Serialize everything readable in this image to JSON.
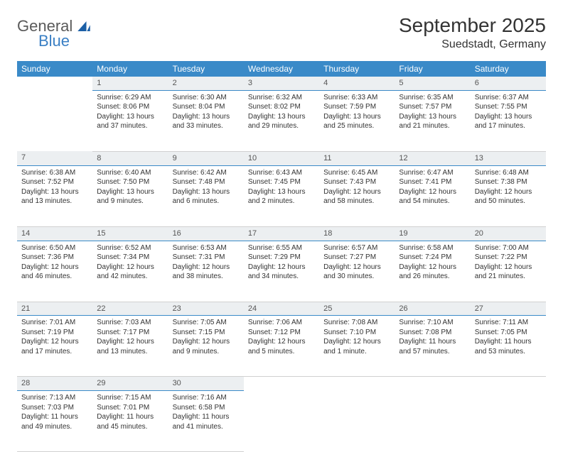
{
  "brand": {
    "general": "General",
    "blue": "Blue"
  },
  "title": "September 2025",
  "location": "Suedstadt, Germany",
  "header_bg": "#3a8ac8",
  "daynum_bg": "#eceff1",
  "daynum_border": "#3a8ac8",
  "weekdays": [
    "Sunday",
    "Monday",
    "Tuesday",
    "Wednesday",
    "Thursday",
    "Friday",
    "Saturday"
  ],
  "weeks": [
    [
      {
        "n": "",
        "lines": [
          "",
          "",
          "",
          ""
        ]
      },
      {
        "n": "1",
        "lines": [
          "Sunrise: 6:29 AM",
          "Sunset: 8:06 PM",
          "Daylight: 13 hours",
          "and 37 minutes."
        ]
      },
      {
        "n": "2",
        "lines": [
          "Sunrise: 6:30 AM",
          "Sunset: 8:04 PM",
          "Daylight: 13 hours",
          "and 33 minutes."
        ]
      },
      {
        "n": "3",
        "lines": [
          "Sunrise: 6:32 AM",
          "Sunset: 8:02 PM",
          "Daylight: 13 hours",
          "and 29 minutes."
        ]
      },
      {
        "n": "4",
        "lines": [
          "Sunrise: 6:33 AM",
          "Sunset: 7:59 PM",
          "Daylight: 13 hours",
          "and 25 minutes."
        ]
      },
      {
        "n": "5",
        "lines": [
          "Sunrise: 6:35 AM",
          "Sunset: 7:57 PM",
          "Daylight: 13 hours",
          "and 21 minutes."
        ]
      },
      {
        "n": "6",
        "lines": [
          "Sunrise: 6:37 AM",
          "Sunset: 7:55 PM",
          "Daylight: 13 hours",
          "and 17 minutes."
        ]
      }
    ],
    [
      {
        "n": "7",
        "lines": [
          "Sunrise: 6:38 AM",
          "Sunset: 7:52 PM",
          "Daylight: 13 hours",
          "and 13 minutes."
        ]
      },
      {
        "n": "8",
        "lines": [
          "Sunrise: 6:40 AM",
          "Sunset: 7:50 PM",
          "Daylight: 13 hours",
          "and 9 minutes."
        ]
      },
      {
        "n": "9",
        "lines": [
          "Sunrise: 6:42 AM",
          "Sunset: 7:48 PM",
          "Daylight: 13 hours",
          "and 6 minutes."
        ]
      },
      {
        "n": "10",
        "lines": [
          "Sunrise: 6:43 AM",
          "Sunset: 7:45 PM",
          "Daylight: 13 hours",
          "and 2 minutes."
        ]
      },
      {
        "n": "11",
        "lines": [
          "Sunrise: 6:45 AM",
          "Sunset: 7:43 PM",
          "Daylight: 12 hours",
          "and 58 minutes."
        ]
      },
      {
        "n": "12",
        "lines": [
          "Sunrise: 6:47 AM",
          "Sunset: 7:41 PM",
          "Daylight: 12 hours",
          "and 54 minutes."
        ]
      },
      {
        "n": "13",
        "lines": [
          "Sunrise: 6:48 AM",
          "Sunset: 7:38 PM",
          "Daylight: 12 hours",
          "and 50 minutes."
        ]
      }
    ],
    [
      {
        "n": "14",
        "lines": [
          "Sunrise: 6:50 AM",
          "Sunset: 7:36 PM",
          "Daylight: 12 hours",
          "and 46 minutes."
        ]
      },
      {
        "n": "15",
        "lines": [
          "Sunrise: 6:52 AM",
          "Sunset: 7:34 PM",
          "Daylight: 12 hours",
          "and 42 minutes."
        ]
      },
      {
        "n": "16",
        "lines": [
          "Sunrise: 6:53 AM",
          "Sunset: 7:31 PM",
          "Daylight: 12 hours",
          "and 38 minutes."
        ]
      },
      {
        "n": "17",
        "lines": [
          "Sunrise: 6:55 AM",
          "Sunset: 7:29 PM",
          "Daylight: 12 hours",
          "and 34 minutes."
        ]
      },
      {
        "n": "18",
        "lines": [
          "Sunrise: 6:57 AM",
          "Sunset: 7:27 PM",
          "Daylight: 12 hours",
          "and 30 minutes."
        ]
      },
      {
        "n": "19",
        "lines": [
          "Sunrise: 6:58 AM",
          "Sunset: 7:24 PM",
          "Daylight: 12 hours",
          "and 26 minutes."
        ]
      },
      {
        "n": "20",
        "lines": [
          "Sunrise: 7:00 AM",
          "Sunset: 7:22 PM",
          "Daylight: 12 hours",
          "and 21 minutes."
        ]
      }
    ],
    [
      {
        "n": "21",
        "lines": [
          "Sunrise: 7:01 AM",
          "Sunset: 7:19 PM",
          "Daylight: 12 hours",
          "and 17 minutes."
        ]
      },
      {
        "n": "22",
        "lines": [
          "Sunrise: 7:03 AM",
          "Sunset: 7:17 PM",
          "Daylight: 12 hours",
          "and 13 minutes."
        ]
      },
      {
        "n": "23",
        "lines": [
          "Sunrise: 7:05 AM",
          "Sunset: 7:15 PM",
          "Daylight: 12 hours",
          "and 9 minutes."
        ]
      },
      {
        "n": "24",
        "lines": [
          "Sunrise: 7:06 AM",
          "Sunset: 7:12 PM",
          "Daylight: 12 hours",
          "and 5 minutes."
        ]
      },
      {
        "n": "25",
        "lines": [
          "Sunrise: 7:08 AM",
          "Sunset: 7:10 PM",
          "Daylight: 12 hours",
          "and 1 minute."
        ]
      },
      {
        "n": "26",
        "lines": [
          "Sunrise: 7:10 AM",
          "Sunset: 7:08 PM",
          "Daylight: 11 hours",
          "and 57 minutes."
        ]
      },
      {
        "n": "27",
        "lines": [
          "Sunrise: 7:11 AM",
          "Sunset: 7:05 PM",
          "Daylight: 11 hours",
          "and 53 minutes."
        ]
      }
    ],
    [
      {
        "n": "28",
        "lines": [
          "Sunrise: 7:13 AM",
          "Sunset: 7:03 PM",
          "Daylight: 11 hours",
          "and 49 minutes."
        ]
      },
      {
        "n": "29",
        "lines": [
          "Sunrise: 7:15 AM",
          "Sunset: 7:01 PM",
          "Daylight: 11 hours",
          "and 45 minutes."
        ]
      },
      {
        "n": "30",
        "lines": [
          "Sunrise: 7:16 AM",
          "Sunset: 6:58 PM",
          "Daylight: 11 hours",
          "and 41 minutes."
        ]
      },
      {
        "n": "",
        "lines": [
          "",
          "",
          "",
          ""
        ]
      },
      {
        "n": "",
        "lines": [
          "",
          "",
          "",
          ""
        ]
      },
      {
        "n": "",
        "lines": [
          "",
          "",
          "",
          ""
        ]
      },
      {
        "n": "",
        "lines": [
          "",
          "",
          "",
          ""
        ]
      }
    ]
  ]
}
